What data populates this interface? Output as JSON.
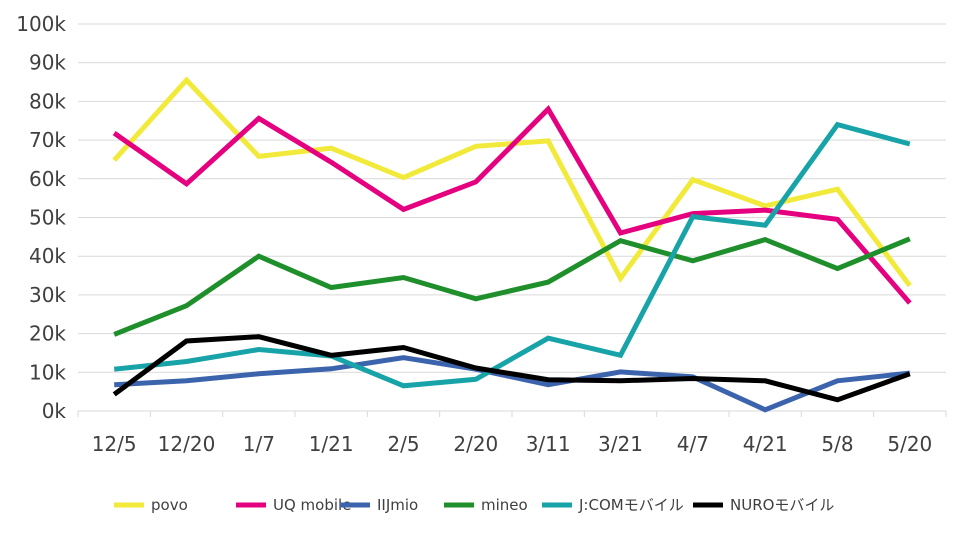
{
  "chart_data": {
    "type": "line",
    "title": "",
    "xlabel": "",
    "ylabel": "",
    "ylim": [
      0,
      100000
    ],
    "y_ticks": [
      {
        "value": 0,
        "label": "0k"
      },
      {
        "value": 10000,
        "label": "10k"
      },
      {
        "value": 20000,
        "label": "20k"
      },
      {
        "value": 30000,
        "label": "30k"
      },
      {
        "value": 40000,
        "label": "40k"
      },
      {
        "value": 50000,
        "label": "50k"
      },
      {
        "value": 60000,
        "label": "60k"
      },
      {
        "value": 70000,
        "label": "70k"
      },
      {
        "value": 80000,
        "label": "80k"
      },
      {
        "value": 90000,
        "label": "90k"
      },
      {
        "value": 100000,
        "label": "100k"
      }
    ],
    "grid": "horizontal",
    "legend_position": "bottom",
    "categories": [
      "12/5",
      "12/20",
      "1/7",
      "1/21",
      "2/5",
      "2/20",
      "3/11",
      "3/21",
      "4/7",
      "4/21",
      "5/8",
      "5/20"
    ],
    "series": [
      {
        "name": "povo",
        "color": "#f2ea3a",
        "values": [
          64800,
          85500,
          65800,
          67900,
          60300,
          68400,
          69800,
          34300,
          59800,
          53000,
          57300,
          32400
        ]
      },
      {
        "name": "UQ mobile",
        "color": "#e4007f",
        "values": [
          71800,
          58700,
          75600,
          64300,
          52100,
          59200,
          78000,
          46000,
          51000,
          51900,
          49500,
          27900
        ]
      },
      {
        "name": "IIJmio",
        "color": "#3c64ad",
        "values": [
          6800,
          7800,
          9600,
          10900,
          13800,
          10800,
          6800,
          10100,
          8800,
          300,
          7800,
          9800
        ]
      },
      {
        "name": "mineo",
        "color": "#1f8f2b",
        "values": [
          19800,
          27200,
          40000,
          31900,
          34500,
          29000,
          33300,
          44000,
          38800,
          44300,
          36800,
          44500
        ]
      },
      {
        "name": "J:COMモバイル",
        "color": "#17a3a8",
        "values": [
          10800,
          12800,
          15900,
          14200,
          6500,
          8200,
          18800,
          14400,
          50200,
          48000,
          74000,
          69000
        ]
      },
      {
        "name": "NUROモバイル",
        "color": "#000000",
        "values": [
          4300,
          18100,
          19200,
          14400,
          16400,
          11100,
          8100,
          7800,
          8400,
          7800,
          2900,
          9600
        ]
      }
    ]
  }
}
